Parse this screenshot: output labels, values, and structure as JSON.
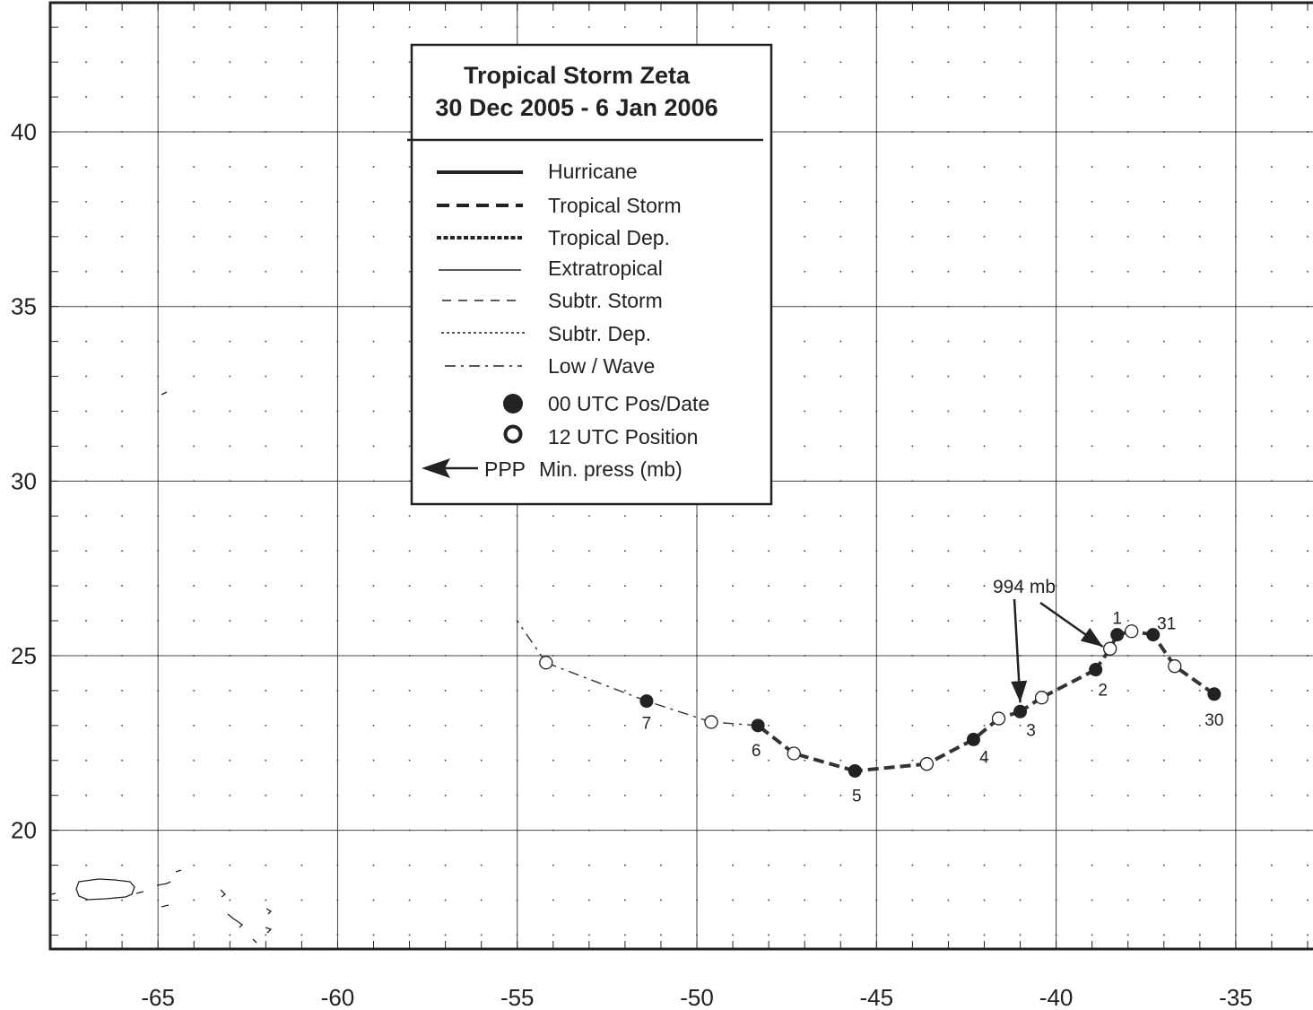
{
  "legend": {
    "title_line1": "Tropical Storm Zeta",
    "title_line2": "30 Dec 2005 - 6 Jan 2006",
    "items": [
      {
        "label": "Hurricane",
        "style": "hurricane"
      },
      {
        "label": "Tropical Storm",
        "style": "tropical-storm"
      },
      {
        "label": "Tropical Dep.",
        "style": "tropical-dep"
      },
      {
        "label": "Extratropical",
        "style": "extratropical"
      },
      {
        "label": "Subtr. Storm",
        "style": "subtr-storm"
      },
      {
        "label": "Subtr. Dep.",
        "style": "subtr-dep"
      },
      {
        "label": "Low / Wave",
        "style": "low-wave"
      },
      {
        "label": "00 UTC Pos/Date",
        "style": "filled-circle"
      },
      {
        "label": "12 UTC Position",
        "style": "open-circle"
      },
      {
        "label": "Min. press (mb)",
        "style": "arrow",
        "prefix": "PPP"
      }
    ]
  },
  "axes": {
    "lon_ticks": [
      -65,
      -60,
      -55,
      -50,
      -45,
      -40,
      -35
    ],
    "lat_ticks": [
      20,
      25,
      30,
      35,
      40
    ],
    "lon_range": [
      -68.0,
      -32.8
    ],
    "lat_range": [
      16.6,
      43.7
    ]
  },
  "track": [
    {
      "lon": -35.6,
      "lat": 23.9,
      "type": "00",
      "label": "30",
      "seg": "tropical-storm"
    },
    {
      "lon": -36.7,
      "lat": 24.7,
      "type": "12",
      "seg": "tropical-storm"
    },
    {
      "lon": -37.3,
      "lat": 25.6,
      "type": "00",
      "label": "31",
      "seg": "tropical-storm"
    },
    {
      "lon": -37.9,
      "lat": 25.7,
      "type": "12",
      "seg": "tropical-storm"
    },
    {
      "lon": -38.3,
      "lat": 25.6,
      "type": "00",
      "label": "1",
      "seg": "tropical-storm"
    },
    {
      "lon": -38.5,
      "lat": 25.2,
      "type": "12",
      "seg": "tropical-storm"
    },
    {
      "lon": -38.9,
      "lat": 24.6,
      "type": "00",
      "label": "2",
      "seg": "tropical-storm"
    },
    {
      "lon": -40.4,
      "lat": 23.8,
      "type": "12",
      "seg": "tropical-storm"
    },
    {
      "lon": -41.0,
      "lat": 23.4,
      "type": "00",
      "label": "3",
      "seg": "tropical-storm"
    },
    {
      "lon": -41.6,
      "lat": 23.2,
      "type": "12",
      "seg": "tropical-storm"
    },
    {
      "lon": -42.3,
      "lat": 22.6,
      "type": "00",
      "label": "4",
      "seg": "tropical-storm"
    },
    {
      "lon": -43.6,
      "lat": 21.9,
      "type": "12",
      "seg": "tropical-storm"
    },
    {
      "lon": -45.6,
      "lat": 21.7,
      "type": "00",
      "label": "5",
      "seg": "tropical-storm"
    },
    {
      "lon": -47.3,
      "lat": 22.2,
      "type": "12",
      "seg": "tropical-storm"
    },
    {
      "lon": -48.3,
      "lat": 23.0,
      "type": "00",
      "label": "6",
      "seg": "tropical-storm"
    },
    {
      "lon": -49.6,
      "lat": 23.1,
      "type": "12",
      "seg": "low-wave"
    },
    {
      "lon": -51.4,
      "lat": 23.7,
      "type": "00",
      "label": "7",
      "seg": "low-wave"
    },
    {
      "lon": -54.2,
      "lat": 24.8,
      "type": "12",
      "seg": "low-wave"
    },
    {
      "lon": -55.0,
      "lat": 26.0,
      "type": "none",
      "seg": "low-wave"
    }
  ],
  "annotations": {
    "pressure_label": "994 mb",
    "pressure_targets": [
      {
        "lon": -41.0,
        "lat": 23.4
      },
      {
        "lon": -38.7,
        "lat": 25.0
      }
    ]
  },
  "colors": {
    "track": "#333333",
    "grid": "#444444",
    "frame": "#222222"
  }
}
